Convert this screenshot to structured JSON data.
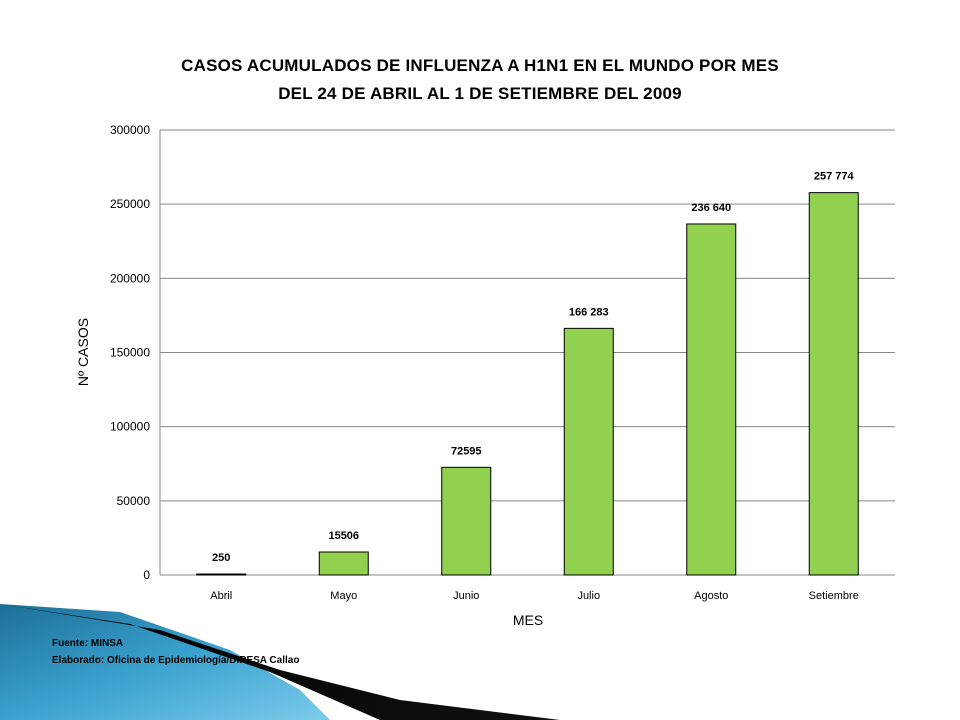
{
  "chart_data": {
    "type": "bar",
    "title": "CASOS ACUMULADOS DE INFLUENZA A H1N1 EN EL MUNDO  POR MES",
    "subtitle": "DEL 24 DE ABRIL AL 1 DE SETIEMBRE DEL 2009",
    "xlabel": "MES",
    "ylabel": "Nº CASOS",
    "categories": [
      "Abril",
      "Mayo",
      "Junio",
      "Julio",
      "Agosto",
      "Setiembre"
    ],
    "values": [
      250,
      15506,
      72595,
      166283,
      236640,
      257774
    ],
    "data_labels": [
      "250",
      "15506",
      "72595",
      "166 283",
      "236 640",
      "257 774"
    ],
    "yticks": [
      "0",
      "50000",
      "100000",
      "150000",
      "200000",
      "250000",
      "300000"
    ],
    "ylim": [
      0,
      300000
    ],
    "grid": true,
    "legend": "none",
    "bar_color": "#92d050"
  },
  "footnotes": {
    "source": "Fuente: MINSA",
    "made_by": "Elaborado: Oficina de Epidemiología/DIRESA Callao"
  }
}
